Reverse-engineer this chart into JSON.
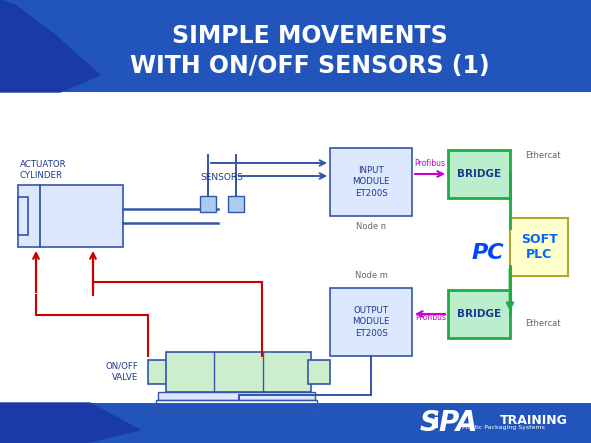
{
  "title_line1": "SIMPLE MOVEMENTS",
  "title_line2": "WITH ON/OFF SENSORS (1)",
  "bg_color": "#ffffff",
  "header_blue": "#2255bb",
  "header_dark": "#1a3aaa",
  "actuator_label": "ACTUATOR\nCYLINDER",
  "sensors_label": "SENSORS",
  "input_module_label": "INPUT\nMODULE\nET200S",
  "output_module_label": "OUTPUT\nMODULE\nET200S",
  "node_n_label": "Node n",
  "node_m_label": "Node m",
  "bridge_label": "BRIDGE",
  "profibus_label": "Profibus",
  "ethercat_label": "Ethercat",
  "onoff_valve_label": "ON/OFF\nVALVE",
  "pc_label": "PC",
  "soft_plc_label": "SOFT\nPLC",
  "box_blue_fill": "#dde8ff",
  "box_blue_border": "#3355aa",
  "box_green_fill": "#bbeecc",
  "box_green_border": "#22aa44",
  "soft_plc_fill": "#ffffcc",
  "soft_plc_border": "#aaaa33",
  "sensor_fill": "#aaccee",
  "valve_fill": "#cceecc",
  "valve_border": "#3355aa",
  "arrow_blue": "#3355aa",
  "arrow_red": "#cc0000",
  "arrow_magenta": "#cc00cc",
  "arrow_green": "#22aa44",
  "text_dark_blue": "#1a3a8c",
  "text_magenta": "#cc00cc",
  "text_gray": "#666666",
  "text_white": "#ffffff",
  "pc_color": "#0044ff",
  "soft_plc_text": "#0066ff"
}
